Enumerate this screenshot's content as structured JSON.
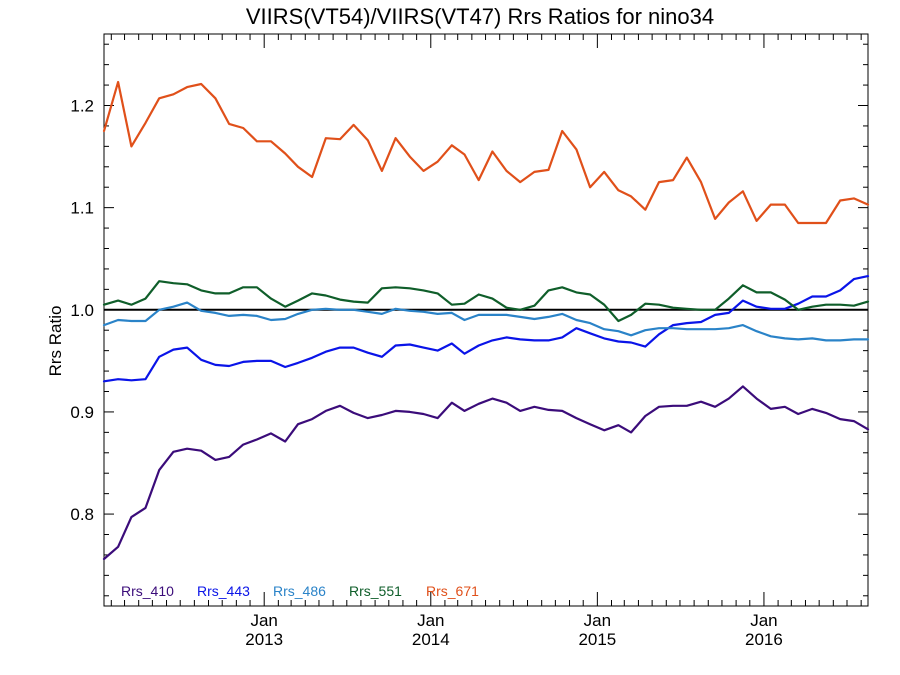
{
  "chart_data": {
    "type": "line",
    "title": "VIIRS(VT54)/VIIRS(VT47)  Rrs Ratios for nino34",
    "xlabel": "",
    "ylabel": "Rrs Ratio",
    "ylim": [
      0.71,
      1.27
    ],
    "xlim": [
      "2012-01-16",
      "2016-08-16"
    ],
    "yticks": [
      0.8,
      0.9,
      1.0,
      1.1,
      1.2
    ],
    "ytick_labels": [
      "0.8",
      "0.9",
      "1.0",
      "1.1",
      "1.2"
    ],
    "xtick_labels": [
      {
        "date": "2013-01-01",
        "line1": "Jan",
        "line2": "2013"
      },
      {
        "date": "2014-01-01",
        "line1": "Jan",
        "line2": "2014"
      },
      {
        "date": "2015-01-01",
        "line1": "Jan",
        "line2": "2015"
      },
      {
        "date": "2016-01-01",
        "line1": "Jan",
        "line2": "2016"
      }
    ],
    "reference_line": 1.0,
    "grid": false,
    "legend_position": "bottom-left",
    "x": [
      "2012-01",
      "2012-02",
      "2012-03",
      "2012-04",
      "2012-05",
      "2012-06",
      "2012-07",
      "2012-08",
      "2012-09",
      "2012-10",
      "2012-11",
      "2012-12",
      "2013-01",
      "2013-02",
      "2013-03",
      "2013-04",
      "2013-05",
      "2013-06",
      "2013-07",
      "2013-08",
      "2013-09",
      "2013-10",
      "2013-11",
      "2013-12",
      "2014-01",
      "2014-02",
      "2014-03",
      "2014-04",
      "2014-05",
      "2014-06",
      "2014-07",
      "2014-08",
      "2014-09",
      "2014-10",
      "2014-11",
      "2014-12",
      "2015-01",
      "2015-02",
      "2015-03",
      "2015-04",
      "2015-05",
      "2015-06",
      "2015-07",
      "2015-08",
      "2015-09",
      "2015-10",
      "2015-11",
      "2015-12",
      "2016-01",
      "2016-02",
      "2016-03",
      "2016-04",
      "2016-05",
      "2016-06",
      "2016-07",
      "2016-08"
    ],
    "series": [
      {
        "name": "Rrs_410",
        "color": "#3b0c7a",
        "values": [
          0.756,
          0.768,
          0.797,
          0.806,
          0.843,
          0.861,
          0.864,
          0.862,
          0.853,
          0.856,
          0.868,
          0.873,
          0.879,
          0.871,
          0.888,
          0.893,
          0.901,
          0.906,
          0.899,
          0.894,
          0.897,
          0.901,
          0.9,
          0.898,
          0.894,
          0.909,
          0.901,
          0.908,
          0.913,
          0.909,
          0.901,
          0.905,
          0.902,
          0.901,
          0.894,
          0.888,
          0.882,
          0.887,
          0.88,
          0.896,
          0.905,
          0.906,
          0.906,
          0.91,
          0.905,
          0.913,
          0.925,
          0.913,
          0.903,
          0.905,
          0.898,
          0.903,
          0.899,
          0.893,
          0.891,
          0.883
        ]
      },
      {
        "name": "Rrs_443",
        "color": "#0a14e8",
        "values": [
          0.93,
          0.932,
          0.931,
          0.932,
          0.954,
          0.961,
          0.963,
          0.951,
          0.946,
          0.945,
          0.949,
          0.95,
          0.95,
          0.944,
          0.948,
          0.953,
          0.959,
          0.963,
          0.963,
          0.958,
          0.954,
          0.965,
          0.966,
          0.963,
          0.96,
          0.967,
          0.957,
          0.965,
          0.97,
          0.973,
          0.971,
          0.97,
          0.97,
          0.973,
          0.982,
          0.977,
          0.972,
          0.969,
          0.968,
          0.964,
          0.976,
          0.985,
          0.987,
          0.988,
          0.995,
          0.997,
          1.009,
          1.003,
          1.001,
          1.001,
          1.006,
          1.013,
          1.013,
          1.019,
          1.03,
          1.033
        ]
      },
      {
        "name": "Rrs_486",
        "color": "#2a83c8",
        "values": [
          0.985,
          0.99,
          0.989,
          0.989,
          1.0,
          1.003,
          1.007,
          0.999,
          0.997,
          0.994,
          0.995,
          0.994,
          0.99,
          0.991,
          0.996,
          1.0,
          1.001,
          1.0,
          1.0,
          0.998,
          0.996,
          1.001,
          0.999,
          0.998,
          0.996,
          0.997,
          0.99,
          0.995,
          0.995,
          0.995,
          0.993,
          0.991,
          0.993,
          0.996,
          0.99,
          0.987,
          0.981,
          0.979,
          0.975,
          0.98,
          0.982,
          0.982,
          0.981,
          0.981,
          0.981,
          0.982,
          0.985,
          0.979,
          0.974,
          0.972,
          0.971,
          0.972,
          0.97,
          0.97,
          0.971,
          0.971
        ]
      },
      {
        "name": "Rrs_551",
        "color": "#0f5e2a",
        "values": [
          1.005,
          1.009,
          1.005,
          1.011,
          1.028,
          1.026,
          1.025,
          1.019,
          1.016,
          1.016,
          1.022,
          1.022,
          1.011,
          1.003,
          1.009,
          1.016,
          1.014,
          1.01,
          1.008,
          1.007,
          1.021,
          1.022,
          1.021,
          1.019,
          1.016,
          1.005,
          1.006,
          1.015,
          1.011,
          1.002,
          1.0,
          1.004,
          1.019,
          1.022,
          1.017,
          1.015,
          1.005,
          0.989,
          0.995,
          1.006,
          1.005,
          1.002,
          1.001,
          1.0,
          1.0,
          1.011,
          1.024,
          1.017,
          1.017,
          1.01,
          1.0,
          1.003,
          1.005,
          1.005,
          1.004,
          1.008
        ]
      },
      {
        "name": "Rrs_671",
        "color": "#e0501a",
        "values": [
          1.175,
          1.223,
          1.16,
          1.183,
          1.207,
          1.211,
          1.218,
          1.221,
          1.207,
          1.182,
          1.178,
          1.165,
          1.165,
          1.153,
          1.14,
          1.13,
          1.168,
          1.167,
          1.181,
          1.166,
          1.136,
          1.168,
          1.15,
          1.136,
          1.145,
          1.161,
          1.152,
          1.127,
          1.155,
          1.136,
          1.125,
          1.135,
          1.137,
          1.175,
          1.157,
          1.12,
          1.135,
          1.117,
          1.111,
          1.098,
          1.125,
          1.127,
          1.149,
          1.125,
          1.089,
          1.105,
          1.116,
          1.087,
          1.103,
          1.103,
          1.085,
          1.085,
          1.085,
          1.107,
          1.109,
          1.103
        ]
      }
    ]
  }
}
